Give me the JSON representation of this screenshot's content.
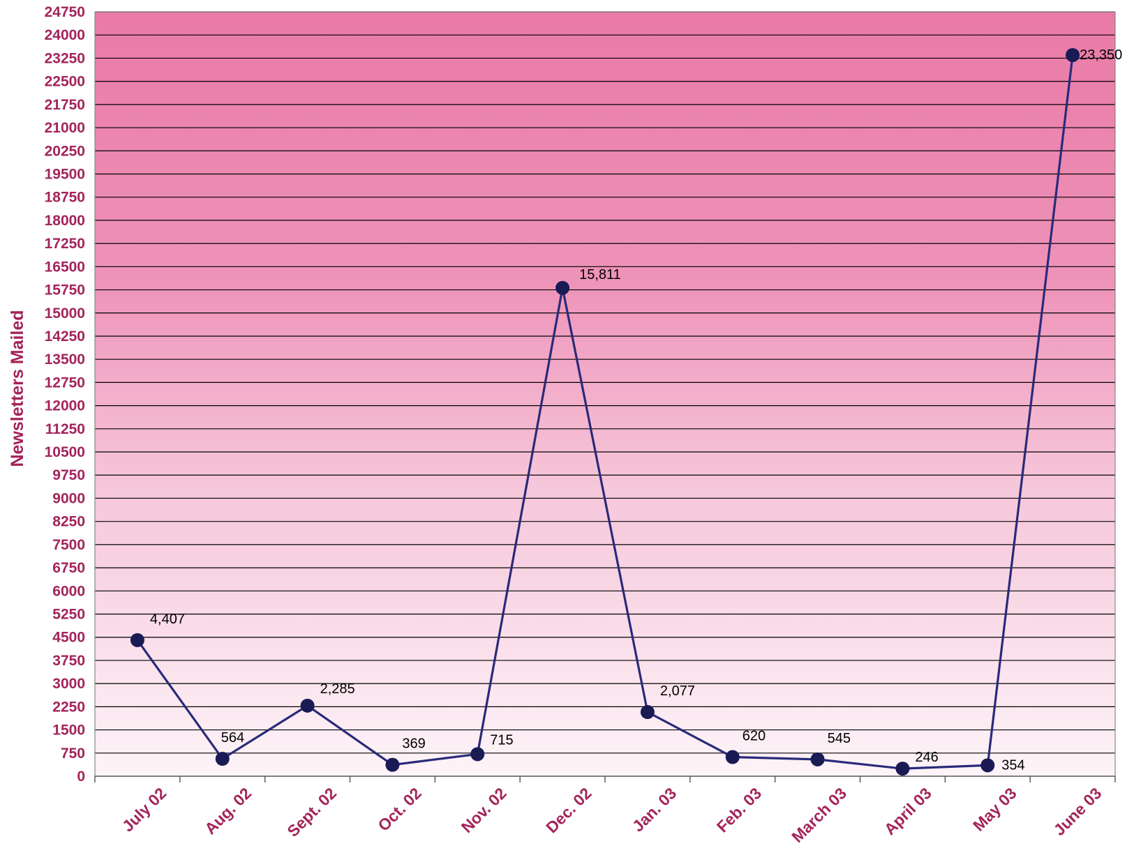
{
  "chart_data": {
    "type": "line",
    "title": "",
    "xlabel": "",
    "ylabel": "Newsletters Mailed",
    "categories": [
      "July 02",
      "Aug. 02",
      "Sept. 02",
      "Oct. 02",
      "Nov. 02",
      "Dec. 02",
      "Jan. 03",
      "Feb. 03",
      "March 03",
      "April 03",
      "May 03",
      "June 03"
    ],
    "series": [
      {
        "values": [
          4407,
          564,
          2285,
          369,
          715,
          15811,
          2077,
          620,
          545,
          246,
          354,
          23350
        ],
        "data_labels": [
          "4,407",
          "564",
          "2,285",
          "369",
          "715",
          "15,811",
          "2,077",
          "620",
          "545",
          "246",
          "354",
          "23,350"
        ]
      }
    ],
    "ylim": [
      0,
      24750
    ],
    "yticks": [
      0,
      750,
      1500,
      2250,
      3000,
      3750,
      4500,
      5250,
      6000,
      6750,
      7500,
      8250,
      9000,
      9750,
      10500,
      11250,
      12000,
      12750,
      13500,
      14250,
      15000,
      15750,
      16500,
      17250,
      18000,
      18750,
      19500,
      20250,
      21000,
      21750,
      22500,
      23250,
      24000,
      24750
    ],
    "ytick_labels": [
      "0",
      "750",
      "1500",
      "2250",
      "3000",
      "3750",
      "4500",
      "5250",
      "6000",
      "6750",
      "7500",
      "8250",
      "9000",
      "9750",
      "10500",
      "11250",
      "12000",
      "12750",
      "13500",
      "14250",
      "15000",
      "15750",
      "16500",
      "17250",
      "18000",
      "18750",
      "19500",
      "20250",
      "21000",
      "21750",
      "22500",
      "23250",
      "24000",
      "24750"
    ],
    "grid": true,
    "legend": "none",
    "colors": {
      "line": "#2a2a7a",
      "marker": "#1a1a55",
      "tick_text": "#a3245a",
      "background_top": "#e97aa6",
      "background_bottom": "#fdf4f8",
      "gridline": "#000000"
    }
  }
}
